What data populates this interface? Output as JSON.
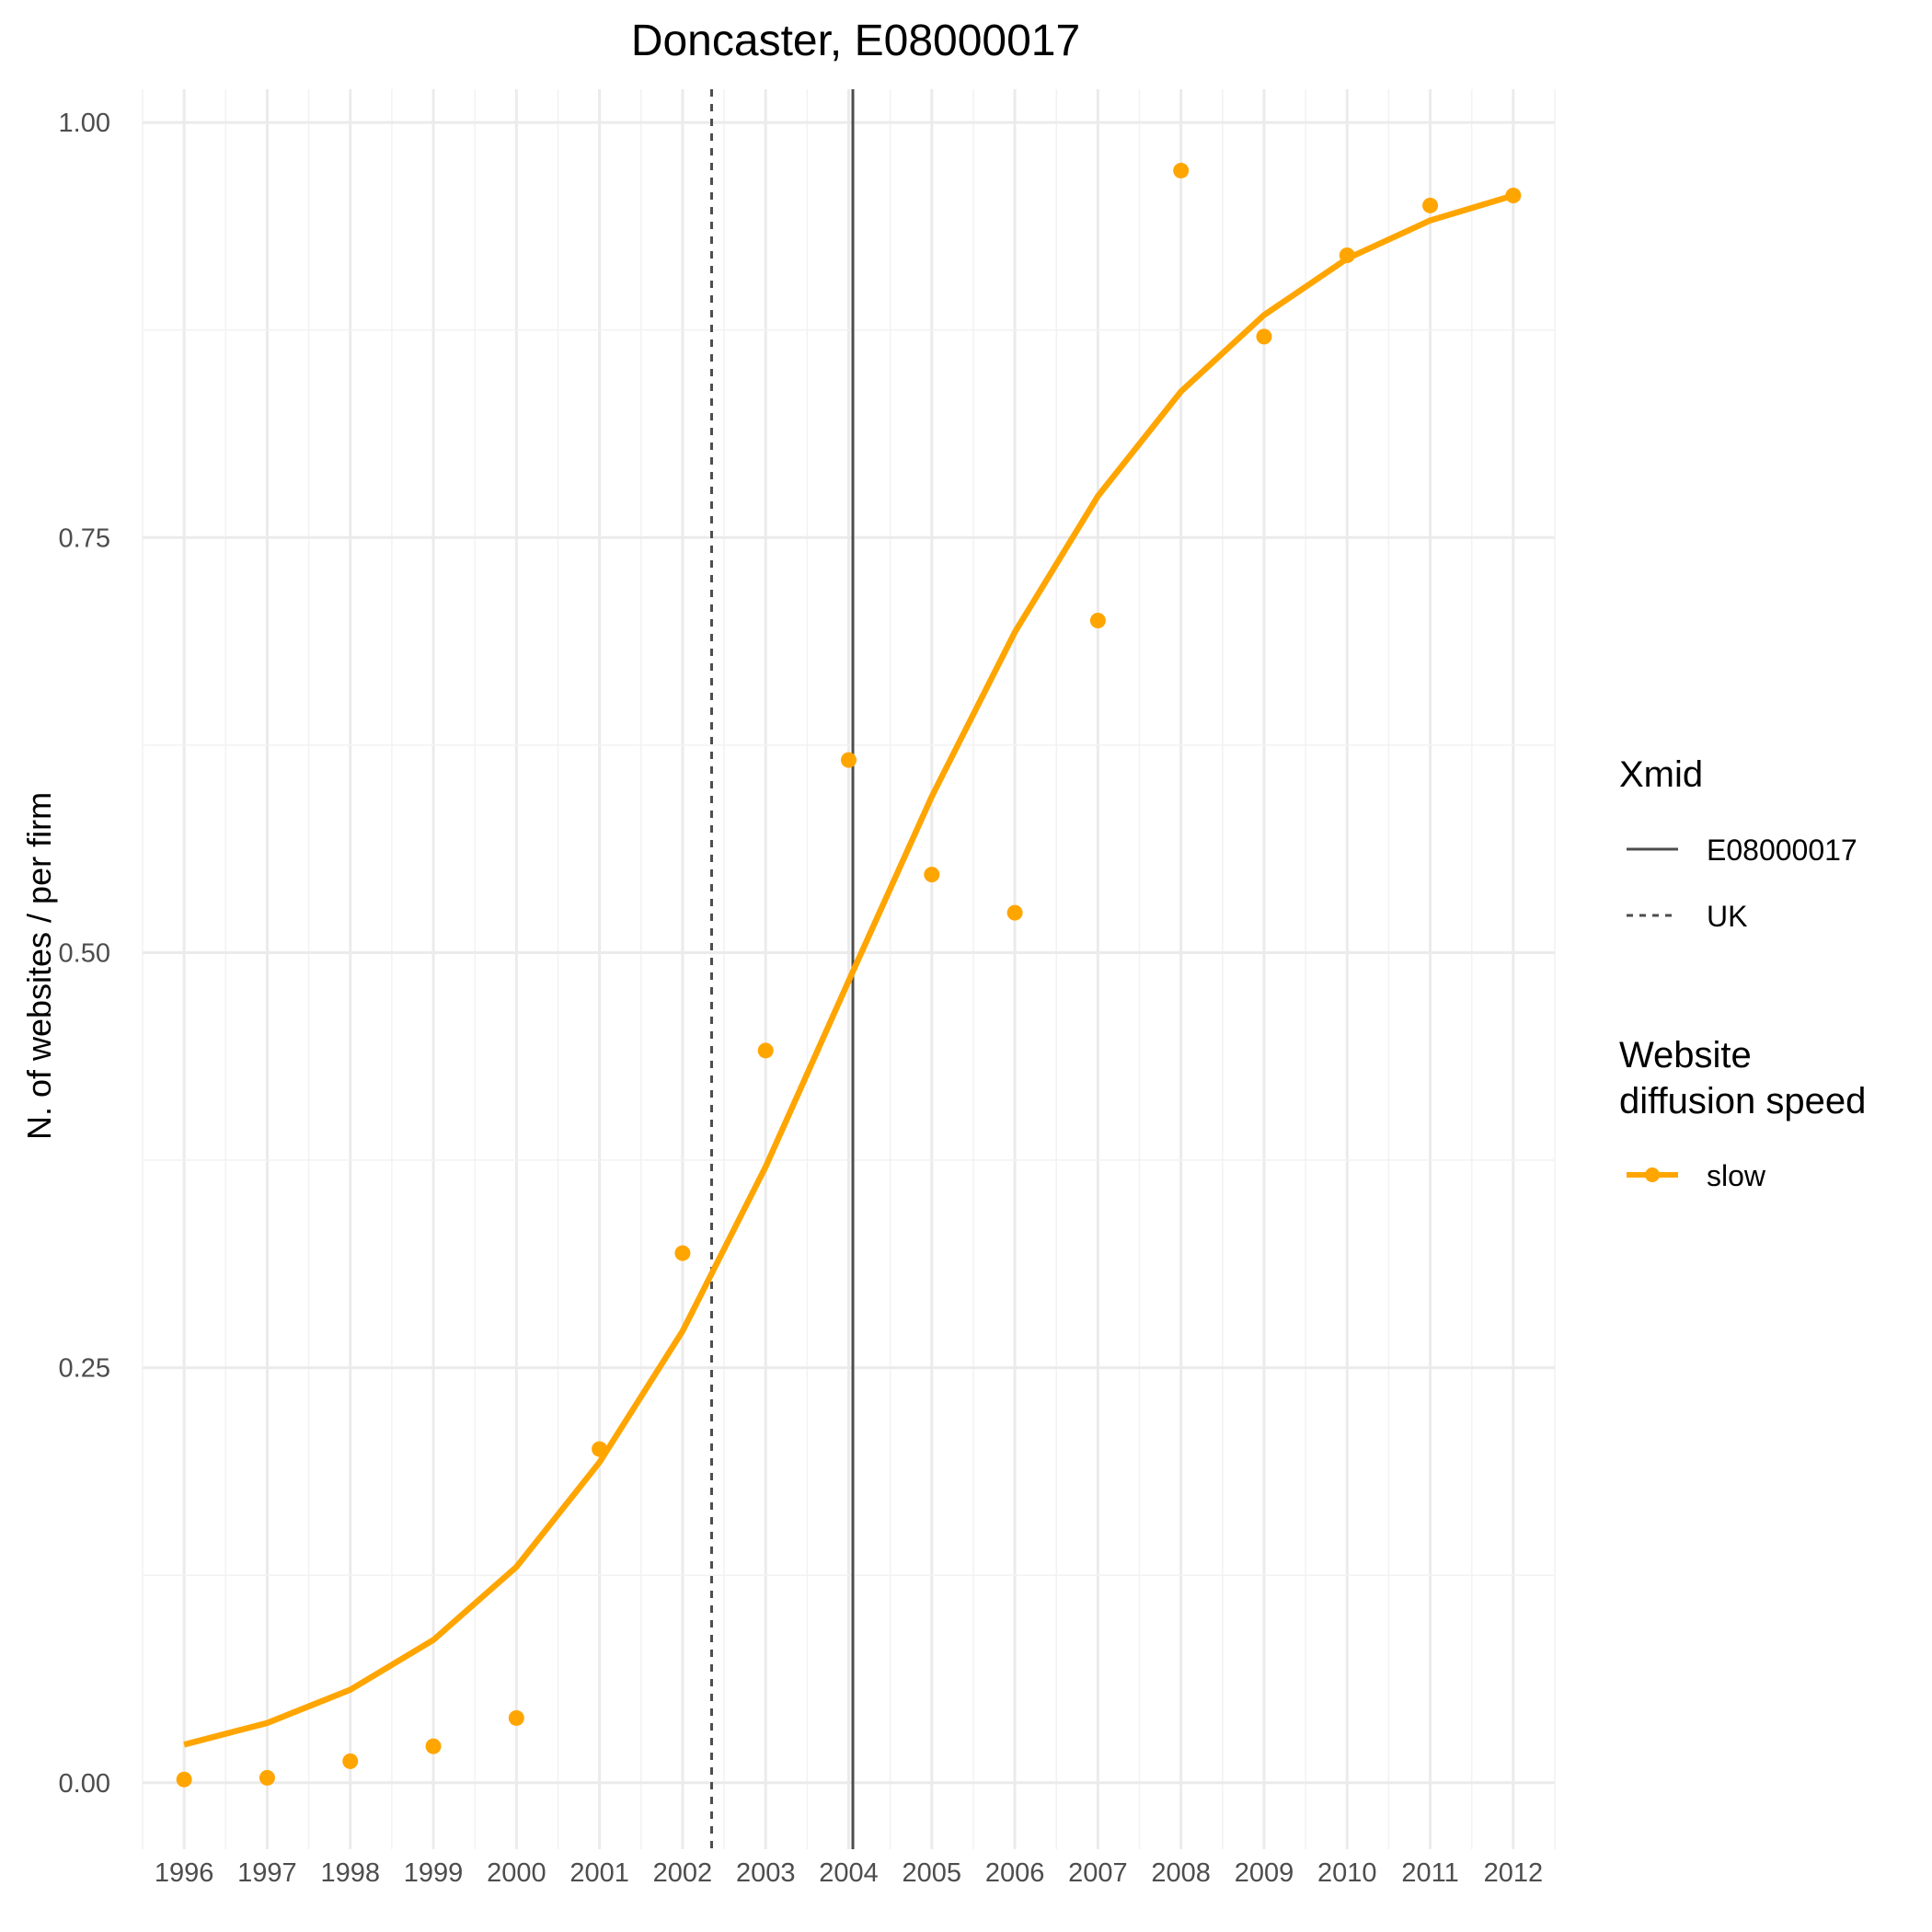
{
  "chart_data": {
    "type": "line",
    "title": "Doncaster, E08000017",
    "xlabel": "",
    "ylabel": "N. of websites / per firm",
    "x": [
      1996,
      1997,
      1998,
      1999,
      2000,
      2001,
      2002,
      2003,
      2004,
      2005,
      2006,
      2007,
      2008,
      2009,
      2010,
      2011,
      2012
    ],
    "x_tick_labels": [
      "1996",
      "1997",
      "1998",
      "1999",
      "2000",
      "2001",
      "2002",
      "2003",
      "2004",
      "2005",
      "2006",
      "2007",
      "2008",
      "2009",
      "2010",
      "2011",
      "2012"
    ],
    "y_ticks": [
      0.0,
      0.25,
      0.5,
      0.75,
      1.0
    ],
    "y_tick_labels": [
      "0.00",
      "0.25",
      "0.50",
      "0.75",
      "1.00"
    ],
    "xlim": [
      1995.5,
      2012.5
    ],
    "ylim": [
      -0.04,
      1.02
    ],
    "grid": true,
    "series": [
      {
        "name": "slow",
        "color": "#FFA500",
        "points": [
          0.002,
          0.003,
          0.013,
          0.022,
          0.039,
          0.201,
          0.319,
          0.441,
          0.616,
          0.547,
          0.524,
          0.7,
          0.971,
          0.871,
          0.92,
          0.95,
          0.956
        ],
        "fitted": [
          0.023,
          0.036,
          0.056,
          0.086,
          0.13,
          0.193,
          0.272,
          0.371,
          0.483,
          0.594,
          0.693,
          0.775,
          0.838,
          0.884,
          0.918,
          0.941,
          0.956
        ]
      }
    ],
    "vlines": [
      {
        "name": "E08000017",
        "x": 2004.05,
        "style": "solid",
        "color": "#4d4d4d"
      },
      {
        "name": "UK",
        "x": 2002.35,
        "style": "dashed",
        "color": "#4d4d4d"
      }
    ],
    "legend": {
      "placement": "right",
      "xmid_title": "Xmid",
      "xmid_items": [
        "E08000017",
        "UK"
      ],
      "speed_title_line1": "Website",
      "speed_title_line2": "diffusion speed",
      "speed_items": [
        "slow"
      ]
    }
  }
}
